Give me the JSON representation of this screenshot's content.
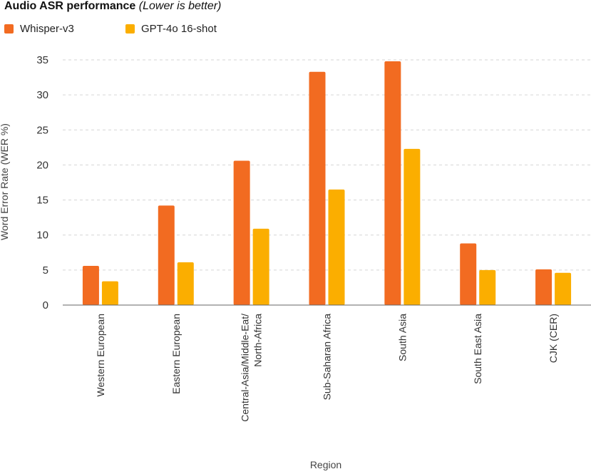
{
  "chart_data": {
    "type": "bar",
    "title": "Audio ASR performance",
    "subtitle": "(Lower is better)",
    "xlabel": "Region",
    "ylabel": "Word Error Rate (WER %)",
    "ylim": [
      0,
      35
    ],
    "yticks": [
      0,
      5,
      10,
      15,
      20,
      25,
      30,
      35
    ],
    "grid": true,
    "legend_position": "top-left",
    "categories": [
      [
        "Western European"
      ],
      [
        "Eastern European"
      ],
      [
        "Central-Asia/Middle-Eat/",
        "North-Africa"
      ],
      [
        "Sub-Saharan Africa"
      ],
      [
        "South Asia"
      ],
      [
        "South East Asia"
      ],
      [
        "CJK (CER)"
      ]
    ],
    "series": [
      {
        "name": "Whisper-v3",
        "color": "#f26b21",
        "values": [
          5.6,
          14.2,
          20.6,
          33.3,
          34.8,
          8.8,
          5.1
        ]
      },
      {
        "name": "GPT-4o 16-shot",
        "color": "#fbae00",
        "values": [
          3.4,
          6.1,
          10.9,
          16.5,
          22.3,
          5.0,
          4.6
        ]
      }
    ]
  }
}
